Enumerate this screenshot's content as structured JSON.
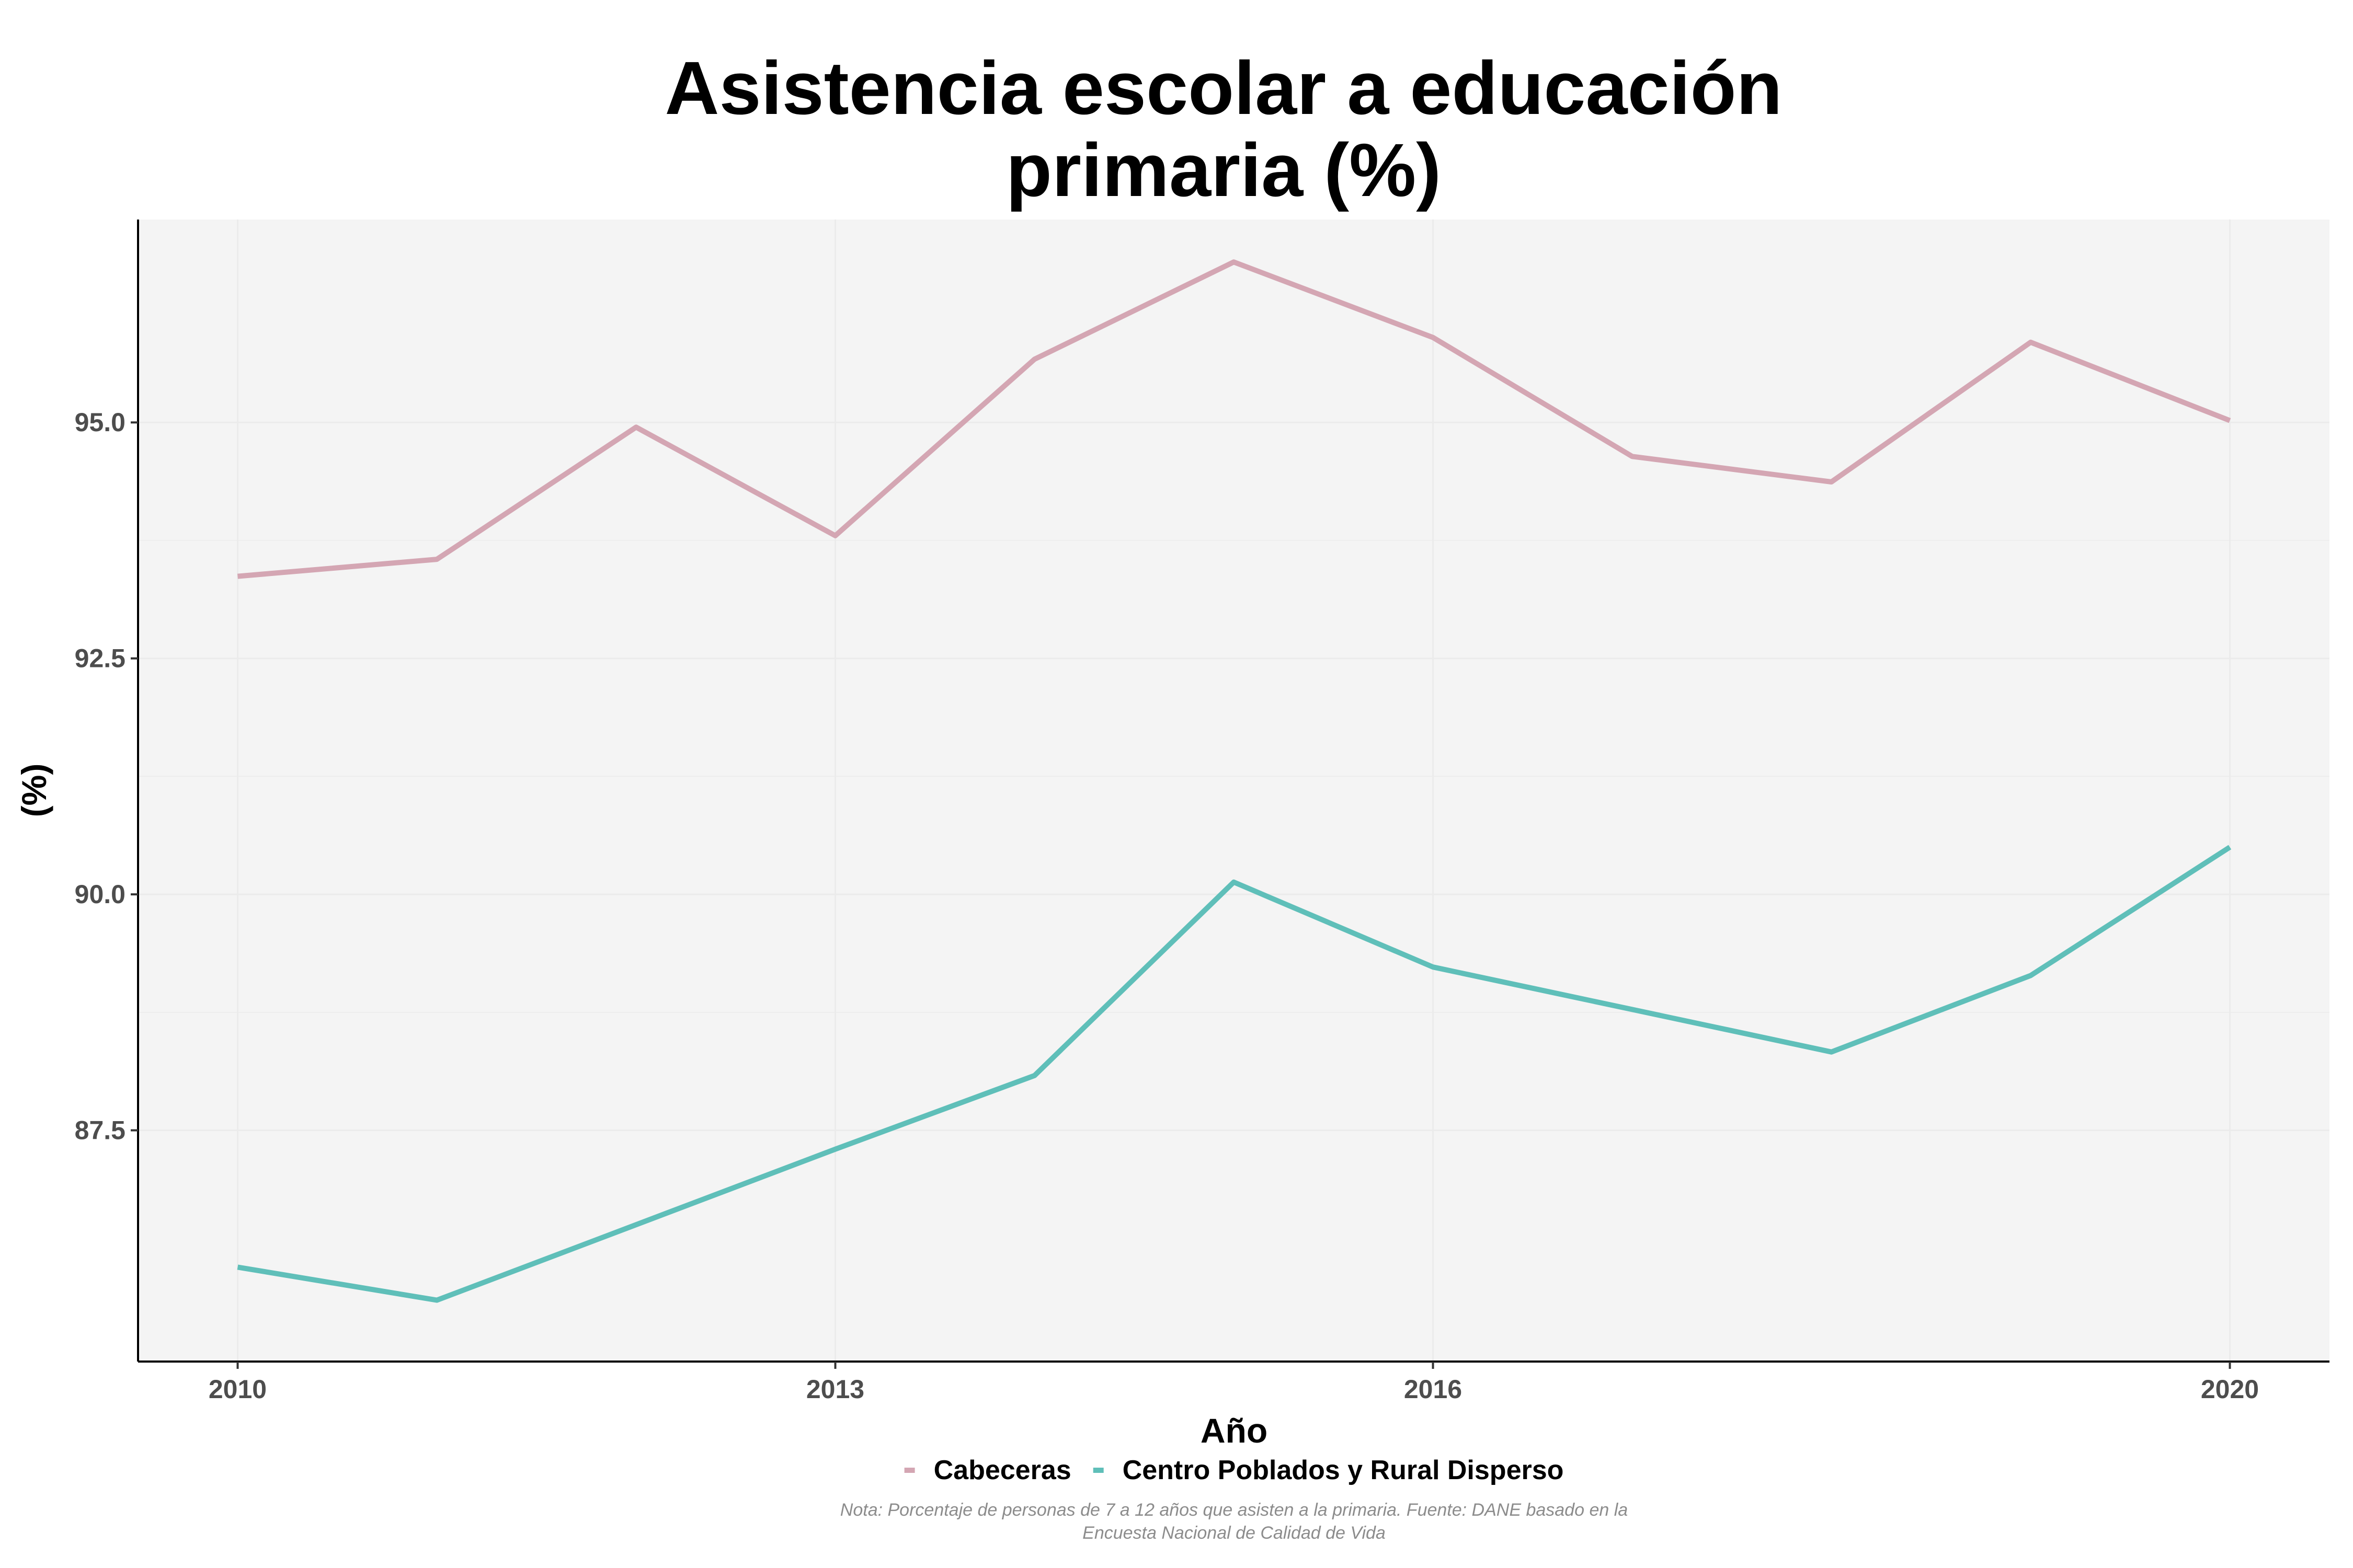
{
  "chart_data": {
    "type": "line",
    "title_lines": [
      "Asistencia escolar a educación",
      "primaria (%)"
    ],
    "xlabel": "Año",
    "ylabel": "(%)",
    "x": [
      2010,
      2011,
      2012,
      2013,
      2014,
      2015,
      2016,
      2017,
      2018,
      2019,
      2020
    ],
    "xticks": [
      2010,
      2013,
      2016,
      2020
    ],
    "xlim": [
      2009.5,
      2020.5
    ],
    "yticks": [
      87.5,
      90.0,
      92.5,
      95.0
    ],
    "ytick_labels": [
      "87.5",
      "90.0",
      "92.5",
      "95.0"
    ],
    "ylim": [
      85.05,
      97.15
    ],
    "grid": true,
    "legend_position": "bottom",
    "series": [
      {
        "name": "Cabeceras",
        "color": "#d4a6b3",
        "values": [
          93.37,
          93.55,
          94.95,
          93.8,
          95.67,
          96.7,
          95.9,
          94.64,
          94.37,
          95.85,
          95.02
        ]
      },
      {
        "name": "Centro Poblados y Rural Disperso",
        "color": "#5fbfb9",
        "values": [
          86.05,
          85.7,
          86.5,
          87.3,
          88.08,
          90.13,
          89.23,
          88.78,
          88.33,
          89.14,
          90.5
        ]
      }
    ],
    "note_lines": [
      "Nota: Porcentaje de personas de 7 a 12 años que asisten a la primaria. Fuente: DANE basado en la",
      "Encuesta Nacional de Calidad de Vida"
    ],
    "panel_color": "#f4f4f4",
    "grid_color": "#ebebeb"
  }
}
